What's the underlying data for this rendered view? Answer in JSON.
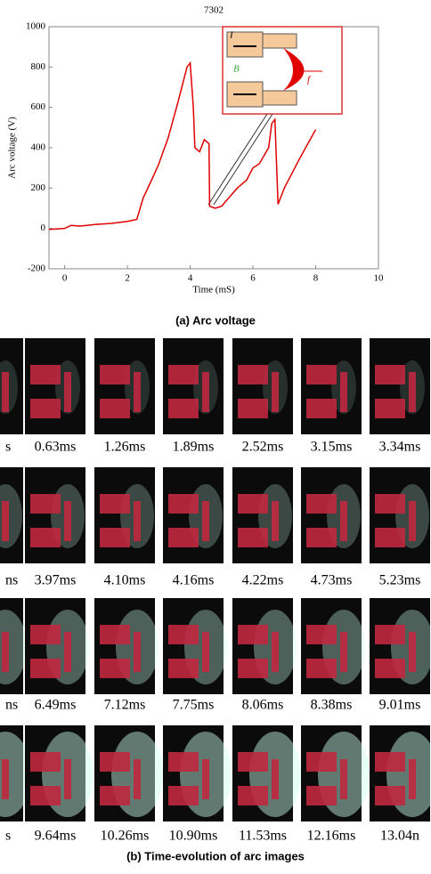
{
  "chart_data": {
    "type": "line",
    "title": "7302",
    "xlabel": "Time (mS)",
    "ylabel": "Arc voltage (V)",
    "color": "#e00000",
    "x": [
      -0.5,
      0,
      0.2,
      0.5,
      1,
      1.5,
      2,
      2.3,
      2.5,
      2.8,
      3,
      3.3,
      3.6,
      3.9,
      4,
      4.1,
      4.15,
      4.3,
      4.45,
      4.6,
      4.62,
      4.8,
      5,
      5.5,
      5.8,
      6,
      6.2,
      6.5,
      6.6,
      6.7,
      6.8,
      7,
      7.5,
      8
    ],
    "values": [
      -5,
      0,
      15,
      12,
      20,
      25,
      35,
      45,
      150,
      250,
      320,
      450,
      620,
      800,
      820,
      600,
      400,
      380,
      440,
      420,
      110,
      100,
      110,
      200,
      240,
      300,
      320,
      400,
      520,
      540,
      120,
      200,
      350,
      490
    ],
    "xlim": [
      -0.5,
      10
    ],
    "xticks": [
      0,
      2,
      4,
      6,
      8,
      10
    ],
    "ylim": [
      -200,
      1000
    ],
    "yticks": [
      -200,
      0,
      200,
      400,
      600,
      800,
      1000
    ],
    "annotations": [
      "I",
      "B",
      "f"
    ]
  },
  "figure": {
    "caption_a": "(a) Arc voltage",
    "image_labels": [
      [
        "s",
        "0.63ms",
        "1.26ms",
        "1.89ms",
        "2.52ms",
        "3.15ms",
        "3.34ms"
      ],
      [
        "ns",
        "3.97ms",
        "4.10ms",
        "4.16ms",
        "4.22ms",
        "4.73ms",
        "5.23ms"
      ],
      [
        "ns",
        "6.49ms",
        "7.12ms",
        "7.75ms",
        "8.06ms",
        "8.38ms",
        "9.01ms"
      ],
      [
        "s",
        "9.64ms",
        "10.26ms",
        "10.90ms",
        "11.53ms",
        "12.16ms",
        "13.04n"
      ]
    ],
    "caption_b": "(b) Time-evolution of arc images"
  }
}
